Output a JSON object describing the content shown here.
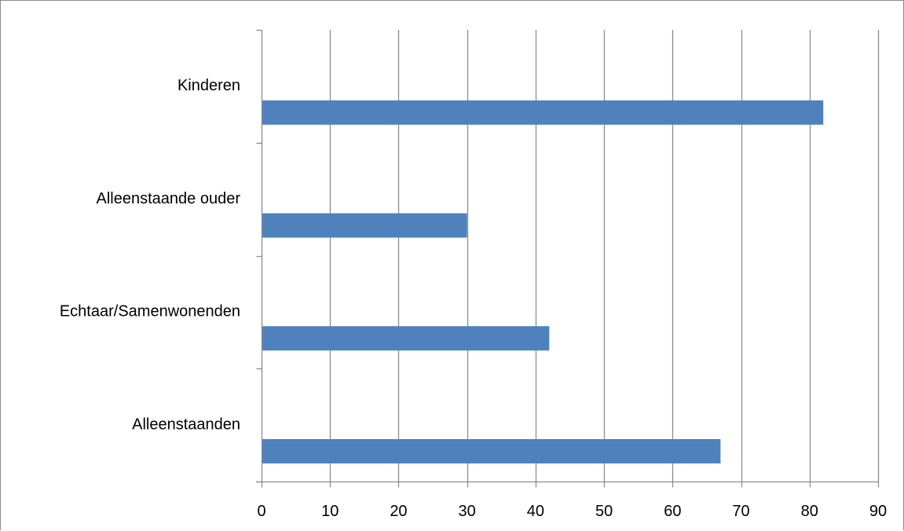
{
  "chart_data": {
    "type": "bar",
    "orientation": "horizontal",
    "categories": [
      "Kinderen",
      "Alleenstaande ouder",
      "Echtaar/Samenwonenden",
      "Alleenstaanden"
    ],
    "values": [
      82,
      30,
      42,
      67
    ],
    "xlim": [
      0,
      90
    ],
    "xticks": [
      0,
      10,
      20,
      30,
      40,
      50,
      60,
      70,
      80,
      90
    ],
    "grid": "vertical",
    "legend": "none",
    "bar_color": "#4f81bd",
    "grid_color": "#8c8c8c",
    "axis_color": "#8c8c8c"
  }
}
